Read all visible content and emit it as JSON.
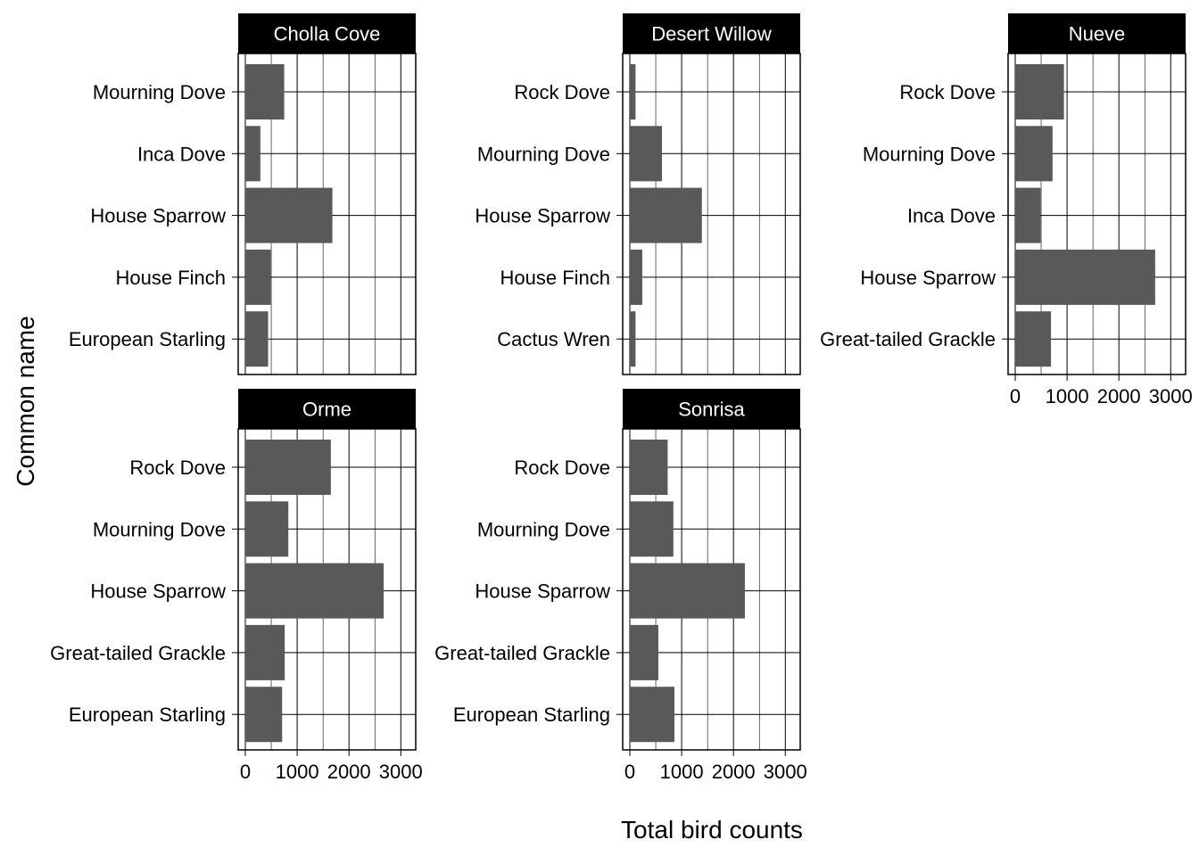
{
  "chart_data": {
    "type": "bar",
    "orientation": "horizontal",
    "xlabel": "Total bird counts",
    "ylabel": "Common name",
    "xlim": [
      0,
      3150
    ],
    "xticks": [
      "0",
      "1000",
      "2000",
      "3000"
    ],
    "xtick_values": [
      0,
      1000,
      2000,
      3000
    ],
    "grid": true,
    "bar_color": "#595959",
    "strip_color": "#000000",
    "strip_text_color": "#ffffff",
    "facets": [
      {
        "name": "Cholla Cove",
        "categories": [
          "Mourning Dove",
          "Inca Dove",
          "House Sparrow",
          "House Finch",
          "European Starling"
        ],
        "values": [
          750,
          290,
          1680,
          490,
          440
        ]
      },
      {
        "name": "Desert Willow",
        "categories": [
          "Rock Dove",
          "Mourning Dove",
          "House Sparrow",
          "House Finch",
          "Cactus Wren"
        ],
        "values": [
          110,
          620,
          1390,
          240,
          110
        ]
      },
      {
        "name": "Nueve",
        "categories": [
          "Rock Dove",
          "Mourning Dove",
          "Inca Dove",
          "House Sparrow",
          "Great-tailed Grackle"
        ],
        "values": [
          940,
          720,
          490,
          2700,
          690
        ]
      },
      {
        "name": "Orme",
        "categories": [
          "Rock Dove",
          "Mourning Dove",
          "House Sparrow",
          "Great-tailed Grackle",
          "European Starling"
        ],
        "values": [
          1650,
          830,
          2670,
          760,
          710
        ]
      },
      {
        "name": "Sonrisa",
        "categories": [
          "Rock Dove",
          "Mourning Dove",
          "House Sparrow",
          "Great-tailed Grackle",
          "European Starling"
        ],
        "values": [
          730,
          840,
          2220,
          550,
          860
        ]
      }
    ]
  }
}
